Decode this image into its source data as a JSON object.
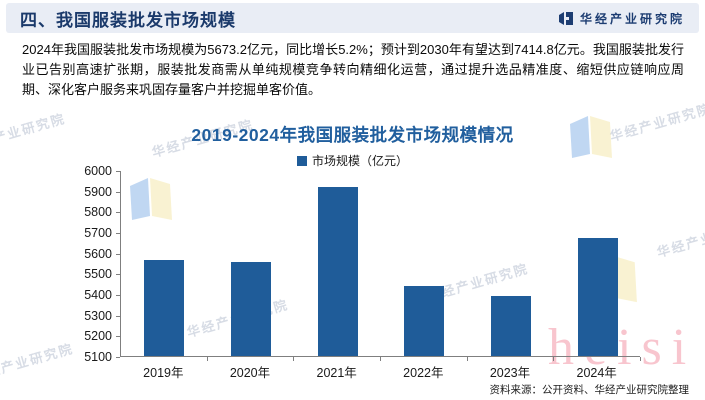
{
  "header": {
    "title": "四、我国服装批发市场规模",
    "brand": "华经产业研究院"
  },
  "intro": {
    "text": "2024年我国服装批发市场规模为5673.2亿元，同比增长5.2%；预计到2030年有望达到7414.8亿元。我国服装批发行业已告别高速扩张期，服装批发商需从单纯规模竞争转向精细化运营，通过提升选品精准度、缩短供应链响应周期、深化客户服务来巩固存量客户并挖掘单客价值。"
  },
  "chart_data": {
    "type": "bar",
    "title": "2019-2024年我国服装批发市场规模情况",
    "legend": "市场规模（亿元）",
    "categories": [
      "2019年",
      "2020年",
      "2021年",
      "2022年",
      "2023年",
      "2024年"
    ],
    "values": [
      5565,
      5555,
      5918,
      5437,
      5392.8,
      5673.2
    ],
    "ylim": [
      5100,
      6000
    ],
    "y_ticks": [
      6000,
      5900,
      5800,
      5700,
      5600,
      5500,
      5400,
      5300,
      5200,
      5100
    ],
    "xlabel": "",
    "ylabel": "",
    "grid": false,
    "legend_position": "top-center",
    "bar_color": "#1f5c99"
  },
  "source": {
    "text": "资料来源：公开资料、华经产业研究院整理"
  },
  "watermarks": {
    "brand_text": "华经产业研究院",
    "pink_text": "heisi"
  },
  "colors": {
    "header_bg": "#e9edf5",
    "header_text": "#1b3a6b",
    "chart_title": "#215f9e",
    "bar": "#1f5c99",
    "axis": "#7f7f7f",
    "pink_watermark": "#f28c9e"
  }
}
